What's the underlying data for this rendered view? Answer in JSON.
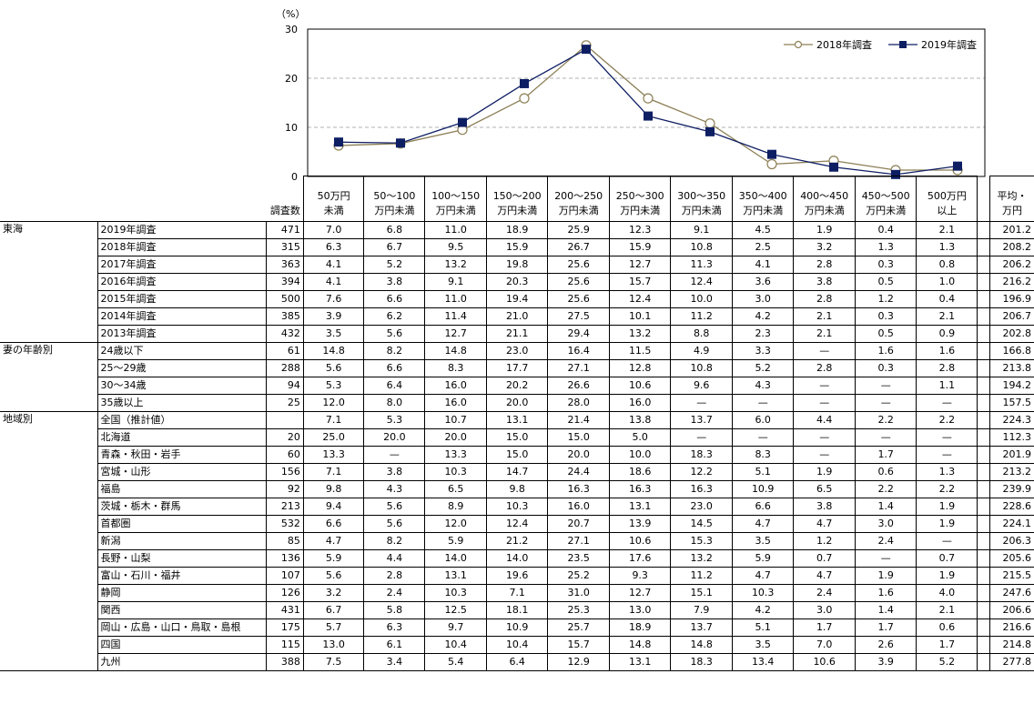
{
  "chart_data": {
    "type": "line",
    "y_unit": "（%）",
    "ylim": [
      0,
      30
    ],
    "yticks": [
      "0",
      "10",
      "20",
      "30"
    ],
    "grid": true,
    "legend_position": "top-right",
    "categories": [
      "50万円未満",
      "50〜100万円未満",
      "100〜150万円未満",
      "150〜200万円未満",
      "200〜250万円未満",
      "250〜300万円未満",
      "300〜350万円未満",
      "350〜400万円未満",
      "400〜450万円未満",
      "450〜500万円未満",
      "500万円以上"
    ],
    "series": [
      {
        "name": "2018年調査",
        "marker": "open-circle",
        "color": "#8c7f55",
        "values": [
          6.3,
          6.7,
          9.5,
          15.9,
          26.7,
          15.9,
          10.8,
          2.5,
          3.2,
          1.3,
          1.3
        ]
      },
      {
        "name": "2019年調査",
        "marker": "square",
        "color": "#0e1e63",
        "values": [
          7.0,
          6.8,
          11.0,
          18.9,
          25.9,
          12.3,
          9.1,
          4.5,
          1.9,
          0.4,
          2.1
        ]
      }
    ]
  },
  "table": {
    "header": {
      "count": "調査数",
      "columns": [
        [
          "50万円",
          "未満"
        ],
        [
          "50〜100",
          "万円未満"
        ],
        [
          "100〜150",
          "万円未満"
        ],
        [
          "150〜200",
          "万円未満"
        ],
        [
          "200〜250",
          "万円未満"
        ],
        [
          "250〜300",
          "万円未満"
        ],
        [
          "300〜350",
          "万円未満"
        ],
        [
          "350〜400",
          "万円未満"
        ],
        [
          "400〜450",
          "万円未満"
        ],
        [
          "450〜500",
          "万円未満"
        ],
        [
          "500万円",
          "以上"
        ]
      ],
      "avg": [
        "平均・",
        "万円"
      ]
    },
    "groups": [
      {
        "name": "東海",
        "rows": [
          {
            "label": "2019年調査",
            "n": "471",
            "v": [
              "7.0",
              "6.8",
              "11.0",
              "18.9",
              "25.9",
              "12.3",
              "9.1",
              "4.5",
              "1.9",
              "0.4",
              "2.1"
            ],
            "avg": "201.2"
          },
          {
            "label": "2018年調査",
            "n": "315",
            "v": [
              "6.3",
              "6.7",
              "9.5",
              "15.9",
              "26.7",
              "15.9",
              "10.8",
              "2.5",
              "3.2",
              "1.3",
              "1.3"
            ],
            "avg": "208.2"
          },
          {
            "label": "2017年調査",
            "n": "363",
            "v": [
              "4.1",
              "5.2",
              "13.2",
              "19.8",
              "25.6",
              "12.7",
              "11.3",
              "4.1",
              "2.8",
              "0.3",
              "0.8"
            ],
            "avg": "206.2"
          },
          {
            "label": "2016年調査",
            "n": "394",
            "v": [
              "4.1",
              "3.8",
              "9.1",
              "20.3",
              "25.6",
              "15.7",
              "12.4",
              "3.6",
              "3.8",
              "0.5",
              "1.0"
            ],
            "avg": "216.2"
          },
          {
            "label": "2015年調査",
            "n": "500",
            "v": [
              "7.6",
              "6.6",
              "11.0",
              "19.4",
              "25.6",
              "12.4",
              "10.0",
              "3.0",
              "2.8",
              "1.2",
              "0.4"
            ],
            "avg": "196.9"
          },
          {
            "label": "2014年調査",
            "n": "385",
            "v": [
              "3.9",
              "6.2",
              "11.4",
              "21.0",
              "27.5",
              "10.1",
              "11.2",
              "4.2",
              "2.1",
              "0.3",
              "2.1"
            ],
            "avg": "206.7"
          },
          {
            "label": "2013年調査",
            "n": "432",
            "v": [
              "3.5",
              "5.6",
              "12.7",
              "21.1",
              "29.4",
              "13.2",
              "8.8",
              "2.3",
              "2.1",
              "0.5",
              "0.9"
            ],
            "avg": "202.8"
          }
        ]
      },
      {
        "name": "妻の年齢別",
        "rows": [
          {
            "label": "24歳以下",
            "n": "61",
            "v": [
              "14.8",
              "8.2",
              "14.8",
              "23.0",
              "16.4",
              "11.5",
              "4.9",
              "3.3",
              "—",
              "1.6",
              "1.6"
            ],
            "avg": "166.8"
          },
          {
            "label": "25〜29歳",
            "n": "288",
            "v": [
              "5.6",
              "6.6",
              "8.3",
              "17.7",
              "27.1",
              "12.8",
              "10.8",
              "5.2",
              "2.8",
              "0.3",
              "2.8"
            ],
            "avg": "213.8"
          },
          {
            "label": "30〜34歳",
            "n": "94",
            "v": [
              "5.3",
              "6.4",
              "16.0",
              "20.2",
              "26.6",
              "10.6",
              "9.6",
              "4.3",
              "—",
              "—",
              "1.1"
            ],
            "avg": "194.2"
          },
          {
            "label": "35歳以上",
            "n": "25",
            "v": [
              "12.0",
              "8.0",
              "16.0",
              "20.0",
              "28.0",
              "16.0",
              "—",
              "—",
              "—",
              "—",
              "—"
            ],
            "avg": "157.5"
          }
        ]
      },
      {
        "name": "地域別",
        "rows": [
          {
            "label": "全国（推計値）",
            "n": "",
            "v": [
              "7.1",
              "5.3",
              "10.7",
              "13.1",
              "21.4",
              "13.8",
              "13.7",
              "6.0",
              "4.4",
              "2.2",
              "2.2"
            ],
            "avg": "224.3"
          },
          {
            "label": "北海道",
            "n": "20",
            "v": [
              "25.0",
              "20.0",
              "20.0",
              "15.0",
              "15.0",
              "5.0",
              "—",
              "—",
              "—",
              "—",
              "—"
            ],
            "avg": "112.3"
          },
          {
            "label": "青森・秋田・岩手",
            "n": "60",
            "v": [
              "13.3",
              "—",
              "13.3",
              "15.0",
              "20.0",
              "10.0",
              "18.3",
              "8.3",
              "—",
              "1.7",
              "—"
            ],
            "avg": "201.9"
          },
          {
            "label": "宮城・山形",
            "n": "156",
            "v": [
              "7.1",
              "3.8",
              "10.3",
              "14.7",
              "24.4",
              "18.6",
              "12.2",
              "5.1",
              "1.9",
              "0.6",
              "1.3"
            ],
            "avg": "213.2"
          },
          {
            "label": "福島",
            "n": "92",
            "v": [
              "9.8",
              "4.3",
              "6.5",
              "9.8",
              "16.3",
              "16.3",
              "16.3",
              "10.9",
              "6.5",
              "2.2",
              "2.2"
            ],
            "avg": "239.9"
          },
          {
            "label": "茨城・栃木・群馬",
            "n": "213",
            "v": [
              "9.4",
              "5.6",
              "8.9",
              "10.3",
              "16.0",
              "13.1",
              "23.0",
              "6.6",
              "3.8",
              "1.4",
              "1.9"
            ],
            "avg": "228.6"
          },
          {
            "label": "首都圏",
            "n": "532",
            "v": [
              "6.6",
              "5.6",
              "12.0",
              "12.4",
              "20.7",
              "13.9",
              "14.5",
              "4.7",
              "4.7",
              "3.0",
              "1.9"
            ],
            "avg": "224.1"
          },
          {
            "label": "新潟",
            "n": "85",
            "v": [
              "4.7",
              "8.2",
              "5.9",
              "21.2",
              "27.1",
              "10.6",
              "15.3",
              "3.5",
              "1.2",
              "2.4",
              "—"
            ],
            "avg": "206.3"
          },
          {
            "label": "長野・山梨",
            "n": "136",
            "v": [
              "5.9",
              "4.4",
              "14.0",
              "14.0",
              "23.5",
              "17.6",
              "13.2",
              "5.9",
              "0.7",
              "—",
              "0.7"
            ],
            "avg": "205.6"
          },
          {
            "label": "富山・石川・福井",
            "n": "107",
            "v": [
              "5.6",
              "2.8",
              "13.1",
              "19.6",
              "25.2",
              "9.3",
              "11.2",
              "4.7",
              "4.7",
              "1.9",
              "1.9"
            ],
            "avg": "215.5"
          },
          {
            "label": "静岡",
            "n": "126",
            "v": [
              "3.2",
              "2.4",
              "10.3",
              "7.1",
              "31.0",
              "12.7",
              "15.1",
              "10.3",
              "2.4",
              "1.6",
              "4.0"
            ],
            "avg": "247.6"
          },
          {
            "label": "関西",
            "n": "431",
            "v": [
              "6.7",
              "5.8",
              "12.5",
              "18.1",
              "25.3",
              "13.0",
              "7.9",
              "4.2",
              "3.0",
              "1.4",
              "2.1"
            ],
            "avg": "206.6"
          },
          {
            "label": "岡山・広島・山口・鳥取・島根",
            "n": "175",
            "v": [
              "5.7",
              "6.3",
              "9.7",
              "10.9",
              "25.7",
              "18.9",
              "13.7",
              "5.1",
              "1.7",
              "1.7",
              "0.6"
            ],
            "avg": "216.6"
          },
          {
            "label": "四国",
            "n": "115",
            "v": [
              "13.0",
              "6.1",
              "10.4",
              "10.4",
              "15.7",
              "14.8",
              "14.8",
              "3.5",
              "7.0",
              "2.6",
              "1.7"
            ],
            "avg": "214.8"
          },
          {
            "label": "九州",
            "n": "388",
            "v": [
              "7.5",
              "3.4",
              "5.4",
              "6.4",
              "12.9",
              "13.1",
              "18.3",
              "13.4",
              "10.6",
              "3.9",
              "5.2"
            ],
            "avg": "277.8"
          }
        ]
      }
    ]
  }
}
